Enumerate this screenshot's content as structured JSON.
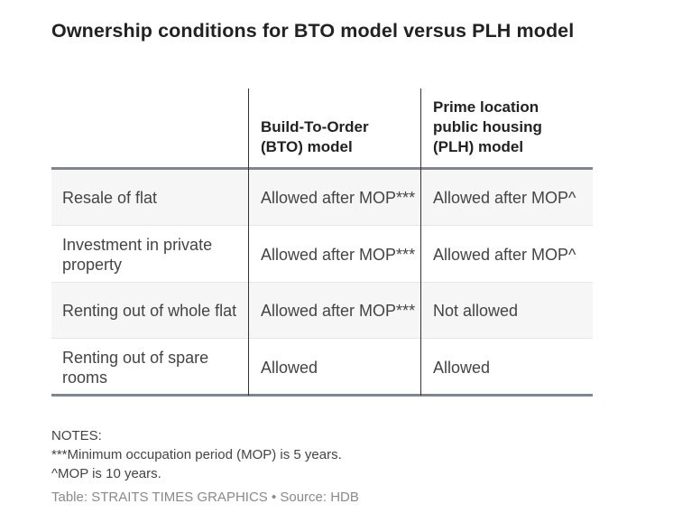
{
  "title": "Ownership conditions for BTO model versus PLH model",
  "chart_data": {
    "type": "table",
    "title": "Ownership conditions for BTO model versus PLH model",
    "columns": [
      "",
      "Build-To-Order (BTO) model",
      "Prime location public housing (PLH) model"
    ],
    "rows": [
      [
        "Resale of flat",
        "Allowed after MOP***",
        "Allowed after MOP^"
      ],
      [
        "Investment in private property",
        "Allowed after MOP***",
        "Allowed after MOP^"
      ],
      [
        "Renting out of whole flat",
        "Allowed after MOP***",
        "Not allowed"
      ],
      [
        "Renting out of spare rooms",
        "Allowed",
        "Allowed"
      ]
    ]
  },
  "notes": {
    "heading": "NOTES:",
    "lines": [
      "***Minimum occupation period (MOP) is 5 years.",
      "^MOP is 10 years."
    ]
  },
  "source": "Table: STRAITS TIMES GRAPHICS • Source: HDB"
}
